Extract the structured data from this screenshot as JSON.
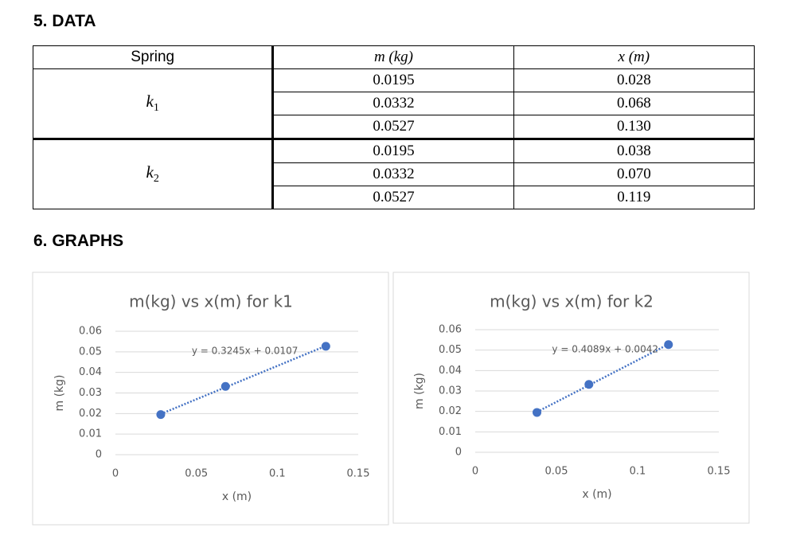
{
  "data_heading": "5. DATA",
  "table": {
    "header": [
      "Spring",
      "m (kg)",
      "x (m)"
    ],
    "groups": [
      {
        "label": "k",
        "subscript": "1",
        "rows": [
          [
            "0.0195",
            "0.028"
          ],
          [
            "0.0332",
            "0.068"
          ],
          [
            "0.0527",
            "0.130"
          ]
        ]
      },
      {
        "label": "k",
        "subscript": "2",
        "rows": [
          [
            "0.0195",
            "0.038"
          ],
          [
            "0.0332",
            "0.070"
          ],
          [
            "0.0527",
            "0.119"
          ]
        ]
      }
    ]
  },
  "graphs_heading": "6. GRAPHS",
  "chart_data": [
    {
      "type": "scatter",
      "title": "m(kg) vs x(m) for k1",
      "x_label": "x (m)",
      "y_label": "m (kg)",
      "x": [
        0.028,
        0.068,
        0.13
      ],
      "values": [
        0.0195,
        0.0332,
        0.0527
      ],
      "color": "#4472c4",
      "xlim": [
        0,
        0.15
      ],
      "xticks": [
        0,
        0.05,
        0.1,
        0.15
      ],
      "ylim": [
        0,
        0.06
      ],
      "yticks": [
        0,
        0.01,
        0.02,
        0.03,
        0.04,
        0.05,
        0.06
      ],
      "grid": true,
      "trendline": {
        "label": "y = 0.3245x + 0.0107",
        "slope": 0.3245,
        "intercept": 0.0107
      }
    },
    {
      "type": "scatter",
      "title": "m(kg) vs x(m) for k2",
      "x_label": "x (m)",
      "y_label": "m (kg)",
      "x": [
        0.038,
        0.07,
        0.119
      ],
      "values": [
        0.0195,
        0.0332,
        0.0527
      ],
      "color": "#4472c4",
      "xlim": [
        0,
        0.15
      ],
      "xticks": [
        0,
        0.05,
        0.1,
        0.15
      ],
      "ylim": [
        0,
        0.06
      ],
      "yticks": [
        0,
        0.01,
        0.02,
        0.03,
        0.04,
        0.05,
        0.06
      ],
      "grid": true,
      "trendline": {
        "label": "y = 0.4089x + 0.0042",
        "slope": 0.4089,
        "intercept": 0.0042
      }
    }
  ]
}
